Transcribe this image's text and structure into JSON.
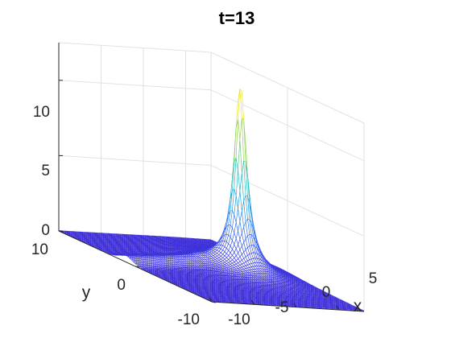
{
  "chart_data": {
    "type": "surface",
    "title": "t=13",
    "xlabel": "x",
    "ylabel": "y",
    "zlabel": "",
    "xlim": [
      -10,
      8
    ],
    "ylim": [
      -10,
      10
    ],
    "zlim": [
      0,
      12.5
    ],
    "x_ticks": [
      "-10",
      "-5",
      "0",
      "5"
    ],
    "y_ticks": [
      "-10",
      "0",
      "10"
    ],
    "z_ticks": [
      "0",
      "5",
      "10"
    ],
    "grid": true,
    "colormap": "parula",
    "colors": {
      "low": "#3d2cd8",
      "mid_low": "#2f7ff5",
      "mid": "#18bfd0",
      "mid_high": "#7fcf5a",
      "high": "#f9e829"
    },
    "peak": {
      "x": 3.6,
      "y": 1.3,
      "z": 12.3
    },
    "features": [
      {
        "name": "trailing ridge",
        "x_from": -9,
        "x_to": 1,
        "y_at": 2.5,
        "height": 0.4
      }
    ]
  }
}
